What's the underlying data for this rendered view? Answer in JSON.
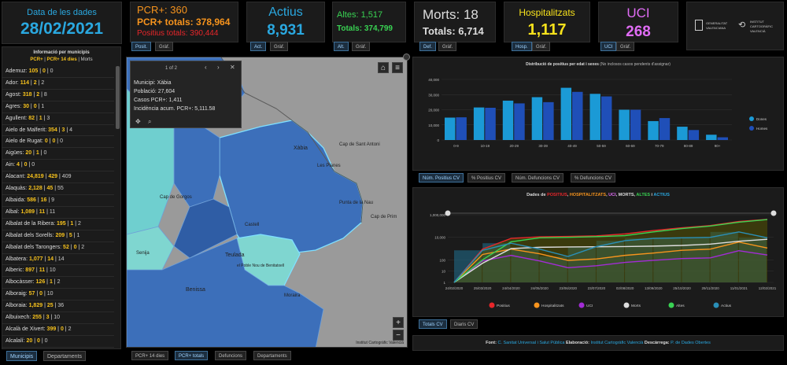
{
  "header": {
    "date": {
      "label": "Data de les dades",
      "value": "28/02/2021"
    },
    "pcr": {
      "title": "PCR+: 360",
      "total": "PCR+ totals: 378,964",
      "positius": "Positius totals: 390,444",
      "tabs": [
        "Posit.",
        "Gràf."
      ]
    },
    "actius": {
      "title": "Actius",
      "value": "8,931",
      "tabs": [
        "Act.",
        "Gràf."
      ]
    },
    "altes": {
      "title": "Altes: 1,517",
      "total": "Totals: 374,799",
      "tabs": [
        "Alt.",
        "Gràf."
      ]
    },
    "morts": {
      "title": "Morts: 18",
      "total": "Totals: 6,714",
      "tabs": [
        "Def.",
        "Gràf."
      ]
    },
    "hosp": {
      "title": "Hospitalitzats",
      "value": "1,117",
      "tabs": [
        "Hosp.",
        "Gràf."
      ]
    },
    "uci": {
      "title": "UCI",
      "value": "268",
      "tabs": [
        "UCI",
        "Gràf."
      ]
    },
    "logos": {
      "gva_line1": "GENERALITAT",
      "gva_line2": "VALENCIANA",
      "icv_line1": "INSTITUT",
      "icv_line2": "CARTOGRÀFIC",
      "icv_line3": "VALENCIÀ"
    }
  },
  "colors": {
    "pcr": "#f7941d",
    "actius": "#2aa8e0",
    "altes": "#39d353",
    "morts": "#dddddd",
    "hosp": "#f7e21c",
    "uci": "#e06cf5",
    "positius_red": "#e8262a"
  },
  "municipis": {
    "title": "Informació per municipis",
    "subtitle_a": "PCR+",
    "subtitle_b": "PCR+ 14 dies",
    "subtitle_c": "Morts",
    "rows": [
      {
        "name": "Ademuz:",
        "a": "105",
        "b": "0",
        "c": "0"
      },
      {
        "name": "Ador:",
        "a": "114",
        "b": "2",
        "c": "2"
      },
      {
        "name": "Agost:",
        "a": "318",
        "b": "2",
        "c": "8"
      },
      {
        "name": "Agres:",
        "a": "30",
        "b": "0",
        "c": "1"
      },
      {
        "name": "Agullent:",
        "a": "82",
        "b": "1",
        "c": "3"
      },
      {
        "name": "Aielo de Malferit:",
        "a": "354",
        "b": "3",
        "c": "4"
      },
      {
        "name": "Aielo de Rugat:",
        "a": "0",
        "b": "0",
        "c": "0"
      },
      {
        "name": "Aigües:",
        "a": "20",
        "b": "1",
        "c": "0"
      },
      {
        "name": "Ain:",
        "a": "4",
        "b": "0",
        "c": "0"
      },
      {
        "name": "Alacant:",
        "a": "24,819",
        "b": "429",
        "c": "409"
      },
      {
        "name": "Alaquàs:",
        "a": "2,128",
        "b": "45",
        "c": "55"
      },
      {
        "name": "Albaida:",
        "a": "586",
        "b": "16",
        "c": "9"
      },
      {
        "name": "Albal:",
        "a": "1,089",
        "b": "11",
        "c": "11"
      },
      {
        "name": "Albalat de la Ribera:",
        "a": "195",
        "b": "1",
        "c": "2"
      },
      {
        "name": "Albalat dels Sorells:",
        "a": "209",
        "b": "5",
        "c": "1"
      },
      {
        "name": "Albalat dels Tarongers:",
        "a": "52",
        "b": "0",
        "c": "2"
      },
      {
        "name": "Albatera:",
        "a": "1,077",
        "b": "14",
        "c": "14"
      },
      {
        "name": "Alberic:",
        "a": "897",
        "b": "11",
        "c": "10"
      },
      {
        "name": "Albocàsser:",
        "a": "126",
        "b": "1",
        "c": "2"
      },
      {
        "name": "Alboraig:",
        "a": "57",
        "b": "0",
        "c": "10"
      },
      {
        "name": "Alboraia:",
        "a": "1,829",
        "b": "25",
        "c": "36"
      },
      {
        "name": "Albuixech:",
        "a": "255",
        "b": "3",
        "c": "10"
      },
      {
        "name": "Alcalà de Xivert:",
        "a": "399",
        "b": "0",
        "c": "2"
      },
      {
        "name": "Alcalalí:",
        "a": "20",
        "b": "0",
        "c": "0"
      },
      {
        "name": "Alcàntera de Xúquer:",
        "a": "86",
        "b": "1",
        "c": "1"
      }
    ],
    "tabs": [
      "Municipis",
      "Departaments"
    ]
  },
  "map": {
    "popup": {
      "pager": "1 of 2",
      "line1": "Municipi: Xàbia",
      "line2": "Població: 27,604",
      "line3": "Casos PCR+: 1,411",
      "line4": "Incidència acum. PCR+: 5,111.58"
    },
    "labels": {
      "xabia": "Xàbia",
      "cap_antoni": "Cap de Sant Antoni",
      "les_planes": "Les Planes",
      "cap_prim": "Cap de Prim",
      "cap_gorgos": "Cap de Gorgos",
      "senija": "Senija",
      "teulada": "Teulada",
      "poble_nou": "el Poble Nou de Benitatxell",
      "benissa": "Benissa",
      "la_nao": "Punta de la Nau",
      "castillo": "Castell",
      "moraira": "Moraira"
    },
    "attribution": "Institut Cartogràfic Valencià",
    "tabs": [
      "PCR+ 14 dies",
      "PCR+ totals",
      "Defuncions",
      "Departaments"
    ]
  },
  "bar_chart": {
    "title": "Distribució de positius per edat i sexes",
    "subtitle": "(No inclosos casos pendents d'assignar)",
    "tabs": [
      "Núm. Positius CV",
      "% Positius CV",
      "Núm. Defuncions CV",
      "% Defuncions CV"
    ]
  },
  "line_chart": {
    "title_prefix": "Dades de ",
    "title_positius": "POSITIUS",
    "title_hosp": "HOSPITALITZATS",
    "title_uci": "UCI",
    "title_morts": "MORTS",
    "title_altes": "ALTES",
    "title_actius": "ACTIUS",
    "title_sep": ", ",
    "title_and": " i ",
    "legend": [
      "Positius",
      "Hospitalitzats",
      "UCI",
      "Morts",
      "Altes",
      "Actius"
    ],
    "tabs": [
      "Totals CV",
      "Diaris CV"
    ]
  },
  "footer": {
    "font_label": "Font:",
    "font_value": "C. Sanitat Universal i Salut Pública",
    "elab_label": "Elaboració:",
    "elab_value": "Institut Cartogràfic Valencià",
    "desc_label": "Descàrrega:",
    "desc_value": "P. de Dades Obertes"
  },
  "chart_data": [
    {
      "type": "bar",
      "title": "Distribució de positius per edat i sexes",
      "categories": [
        "0-9",
        "10-19",
        "20-29",
        "30-39",
        "40-49",
        "50-59",
        "60-69",
        "70-79",
        "80-89",
        "90+"
      ],
      "series": [
        {
          "name": "Dones",
          "values": [
            14800,
            21500,
            26000,
            28300,
            34500,
            30500,
            20000,
            12500,
            8800,
            3500
          ]
        },
        {
          "name": "Homes",
          "values": [
            15000,
            21300,
            24200,
            25000,
            31800,
            28800,
            20000,
            14500,
            6600,
            1800
          ]
        }
      ],
      "ylim": [
        0,
        40000
      ],
      "yticks": [
        "0",
        "10,000",
        "20,000",
        "30,000",
        "40,000"
      ],
      "xticks": [
        "0-9",
        "10-19",
        "20-29",
        "30-39",
        "40-49",
        "50-59",
        "60-69",
        "70-79",
        "80-89",
        "90+"
      ],
      "legend": [
        "Dones",
        "Homes"
      ],
      "grid": true
    },
    {
      "type": "line",
      "title": "Dades de POSITIUS, HOSPITALITZATS, UCI, MORTS, ALTES i ACTIUS",
      "yscale": "log",
      "ylim": [
        1,
        1000000
      ],
      "yticks": [
        "1",
        "10",
        "100",
        "10,000",
        "1,000,000"
      ],
      "xticks": [
        "24/02/2020",
        "25/03/2020",
        "24/04/2020",
        "24/05/2020",
        "23/06/2020",
        "23/07/2020",
        "02/08/2020",
        "13/09/2020",
        "25/10/2020",
        "29/11/2020",
        "11/01/2021",
        "12/02/2021"
      ],
      "series": [
        {
          "name": "Positius",
          "values": [
            1,
            900,
            8000,
            11000,
            12000,
            13500,
            20000,
            40000,
            70000,
            110000,
            250000,
            390444
          ]
        },
        {
          "name": "Hospitalitzats",
          "values": [
            1,
            300,
            900,
            350,
            90,
            120,
            250,
            400,
            700,
            900,
            3800,
            1117
          ]
        },
        {
          "name": "UCI",
          "values": [
            1,
            80,
            250,
            80,
            20,
            30,
            60,
            90,
            130,
            150,
            650,
            268
          ]
        },
        {
          "name": "Morts",
          "values": [
            1,
            50,
            1000,
            1300,
            1400,
            1450,
            1500,
            1650,
            1900,
            2500,
            4500,
            6714
          ]
        },
        {
          "name": "Altes",
          "values": [
            1,
            100,
            4000,
            9000,
            10000,
            11500,
            14000,
            30000,
            60000,
            100000,
            220000,
            374799
          ]
        },
        {
          "name": "Actius",
          "values": [
            1,
            700,
            3000,
            900,
            200,
            1500,
            5000,
            8000,
            9000,
            10000,
            30000,
            8931
          ]
        }
      ],
      "legend": [
        "Positius",
        "Hospitalitzats",
        "UCI",
        "Morts",
        "Altes",
        "Actius"
      ]
    }
  ]
}
